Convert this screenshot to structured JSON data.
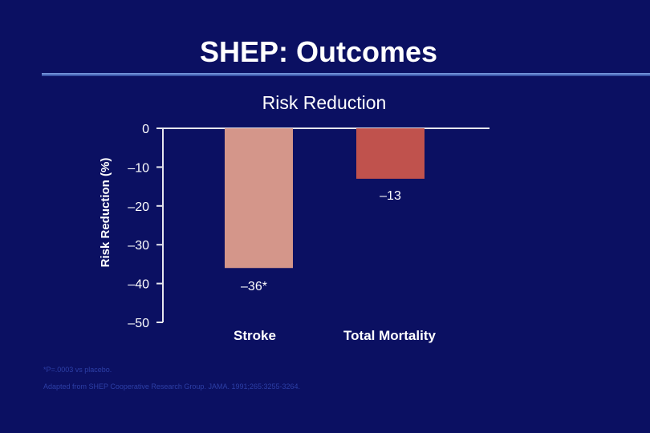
{
  "slide": {
    "title": "SHEP: Outcomes"
  },
  "chart_data": {
    "type": "bar",
    "title": "Risk Reduction",
    "ylabel": "Risk Reduction (%)",
    "xlabel": "",
    "categories": [
      "Stroke",
      "Total Mortality"
    ],
    "values": [
      -36,
      -13
    ],
    "data_labels": [
      "–36*",
      "–13"
    ],
    "ylim": [
      -50,
      0
    ],
    "yticks": [
      0,
      -10,
      -20,
      -30,
      -40,
      -50
    ],
    "ytick_labels": [
      "0",
      "–10",
      "–20",
      "–30",
      "–40",
      "–50"
    ],
    "bar_colors": [
      "#d4968a",
      "#c0524d"
    ],
    "axis_color": "#e6e6ee",
    "grid": false,
    "legend": "none"
  },
  "footnotes": {
    "significance": "*P=.0003 vs placebo.",
    "source": "Adapted from SHEP Cooperative Research Group. JAMA. 1991;265:3255-3264."
  }
}
